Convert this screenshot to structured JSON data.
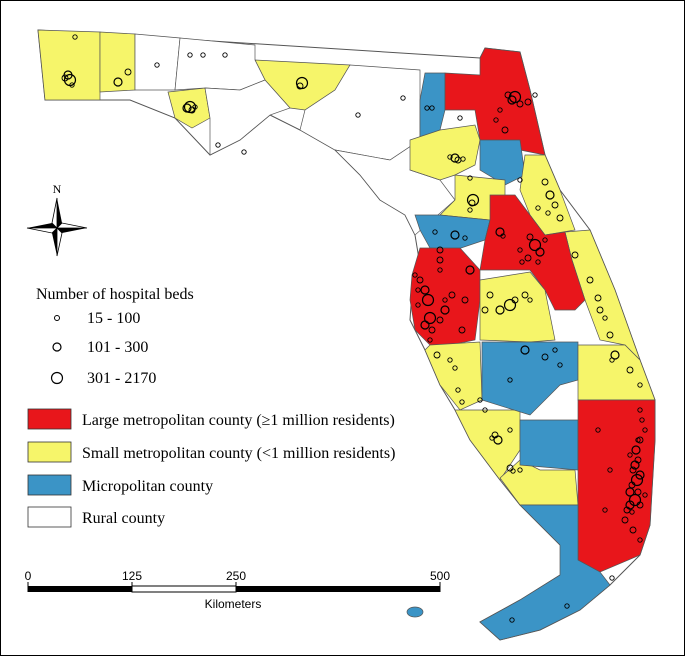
{
  "colors": {
    "large_metro": "#e8161b",
    "small_metro": "#f6f56a",
    "micropolitan": "#3b94c6",
    "rural": "#ffffff",
    "border": "#555555",
    "hospital": "#000000"
  },
  "legend": {
    "beds": {
      "title": "Number of hospital beds",
      "items": [
        {
          "label": "15 - 100",
          "size": "small"
        },
        {
          "label": "101 - 300",
          "size": "medium"
        },
        {
          "label": "301 - 2170",
          "size": "large"
        }
      ]
    },
    "counties": [
      {
        "label": "Large metropolitan county (≥1 million residents)",
        "color_key": "large_metro"
      },
      {
        "label": "Small metropolitan county (<1 million residents)",
        "color_key": "small_metro"
      },
      {
        "label": "Micropolitan county",
        "color_key": "micropolitan"
      },
      {
        "label": "Rural county",
        "color_key": "rural"
      }
    ]
  },
  "compass": {
    "north_label": "N",
    "icon": "north-arrow-icon"
  },
  "scale_bar": {
    "ticks": [
      "0",
      "125",
      "250",
      "500"
    ],
    "unit": "Kilometers"
  }
}
